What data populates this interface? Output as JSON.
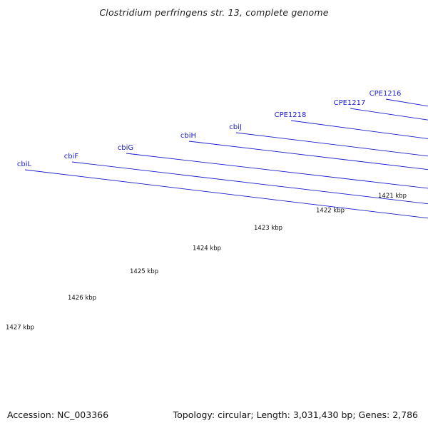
{
  "title": "Clostridium perfringens str. 13, complete genome",
  "footer": {
    "accession": "Accession: NC_003366",
    "summary": "Topology: circular; Length: 3,031,430 bp; Genes: 2,786"
  },
  "colors": {
    "gene": "#1a1aee",
    "gene_dark": "#0000aa",
    "gene_muted": "#4a4ca0",
    "tick": "#138a13",
    "backbone": "#8a8a8a",
    "label": "#1a1acc",
    "text": "#111111",
    "highlight": "#3c7fbf"
  },
  "kbp_labels": [
    "1427 kbp",
    "1426 kbp",
    "1425 kbp",
    "1424 kbp",
    "1423 kbp",
    "1422 kbp",
    "1421 kbp"
  ],
  "gene_labels": [
    "cbiL",
    "cbiF",
    "cbiG",
    "cbiH",
    "cbiJ",
    "CPE1218",
    "CPE1217",
    "CPE1216"
  ]
}
